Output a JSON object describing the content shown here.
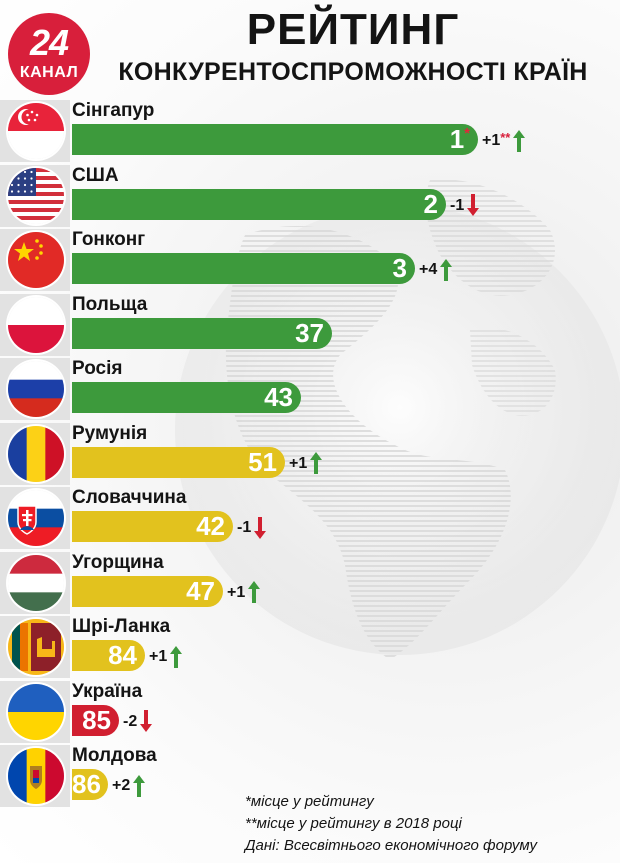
{
  "logo": {
    "number": "24",
    "text": "КАНАЛ"
  },
  "title": {
    "line1": "РЕЙТИНГ",
    "line2": "КОНКУРЕНТОСПРОМОЖНОСТІ КРАЇН"
  },
  "colors": {
    "green": "#3d9a3c",
    "yellow": "#e2c21e",
    "red": "#d11f30",
    "brand": "#d81f3b",
    "arrow_up": "#3d9a3c",
    "arrow_down": "#d11f30"
  },
  "rows": [
    {
      "country": "Сінгапур",
      "rank": "1",
      "rank_mark": "*",
      "change": "+1",
      "change_mark": "**",
      "dir": "up",
      "color": "green",
      "flag": "singapore-flag-icon"
    },
    {
      "country": "США",
      "rank": "2",
      "rank_mark": "",
      "change": "-1",
      "change_mark": "",
      "dir": "down",
      "color": "green",
      "flag": "usa-flag-icon"
    },
    {
      "country": "Гонконг",
      "rank": "3",
      "rank_mark": "",
      "change": "+4",
      "change_mark": "",
      "dir": "up",
      "color": "green",
      "flag": "china-flag-icon"
    },
    {
      "country": "Польща",
      "rank": "37",
      "rank_mark": "",
      "change": "",
      "change_mark": "",
      "dir": "none",
      "color": "green",
      "flag": "poland-flag-icon"
    },
    {
      "country": "Росія",
      "rank": "43",
      "rank_mark": "",
      "change": "",
      "change_mark": "",
      "dir": "none",
      "color": "green",
      "flag": "russia-flag-icon"
    },
    {
      "country": "Румунія",
      "rank": "51",
      "rank_mark": "",
      "change": "+1",
      "change_mark": "",
      "dir": "up",
      "color": "yellow",
      "flag": "romania-flag-icon"
    },
    {
      "country": "Словаччина",
      "rank": "42",
      "rank_mark": "",
      "change": "-1",
      "change_mark": "",
      "dir": "down",
      "color": "yellow",
      "flag": "slovakia-flag-icon"
    },
    {
      "country": "Угорщина",
      "rank": "47",
      "rank_mark": "",
      "change": "+1",
      "change_mark": "",
      "dir": "up",
      "color": "yellow",
      "flag": "hungary-flag-icon"
    },
    {
      "country": "Шрі-Ланка",
      "rank": "84",
      "rank_mark": "",
      "change": "+1",
      "change_mark": "",
      "dir": "up",
      "color": "yellow",
      "flag": "sri-lanka-flag-icon"
    },
    {
      "country": "Україна",
      "rank": "85",
      "rank_mark": "",
      "change": "-2",
      "change_mark": "",
      "dir": "down",
      "color": "red",
      "flag": "ukraine-flag-icon"
    },
    {
      "country": "Молдова",
      "rank": "86",
      "rank_mark": "",
      "change": "+2",
      "change_mark": "",
      "dir": "up",
      "color": "yellow",
      "flag": "moldova-flag-icon"
    }
  ],
  "chart_data": {
    "type": "bar",
    "categories": [
      "Сінгапур",
      "США",
      "Гонконг",
      "Польща",
      "Росія",
      "Румунія",
      "Словаччина",
      "Угорщина",
      "Шрі-Ланка",
      "Україна",
      "Молдова"
    ],
    "values": [
      1,
      2,
      3,
      37,
      43,
      51,
      42,
      47,
      84,
      85,
      86
    ],
    "changes": [
      "+1",
      "-1",
      "+4",
      "",
      "",
      "+1",
      "-1",
      "+1",
      "+1",
      "-2",
      "+2"
    ],
    "bar_fraction": [
      0.78,
      0.72,
      0.66,
      0.5,
      0.44,
      0.41,
      0.31,
      0.29,
      0.14,
      0.09,
      0.07
    ],
    "title": "РЕЙТИНГ КОНКУРЕНТОСПРОМОЖНОСТІ КРАЇН"
  },
  "footnotes": {
    "note1": "*місце у рейтингу",
    "note2": "**місце у рейтингу в 2018 році",
    "source": "Дані: Всесвітнього економічного форуму"
  }
}
